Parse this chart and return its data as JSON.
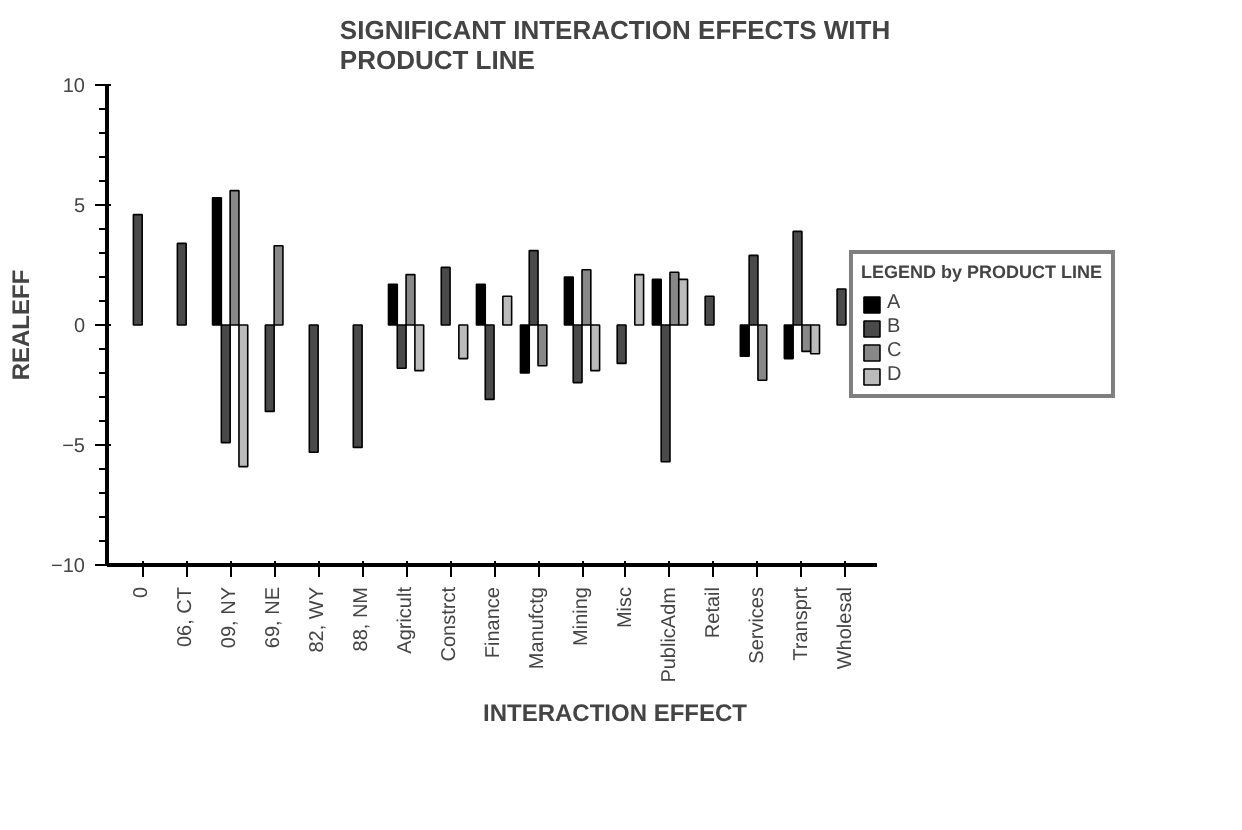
{
  "chart_data": {
    "type": "bar",
    "title": "SIGNIFICANT INTERACTION EFFECTS WITH PRODUCT LINE",
    "xlabel": "INTERACTION EFFECT",
    "ylabel": "REALEFF",
    "legend_title": "LEGEND by PRODUCT LINE",
    "categories": [
      "0",
      "06, CT",
      "09, NY",
      "69, NE",
      "82, WY",
      "88, NM",
      "Agricult",
      "Constrct",
      "Finance",
      "Manufctg",
      "Mining",
      "Misc",
      "PublicAdm",
      "Retail",
      "Services",
      "Transprt",
      "Wholesal"
    ],
    "series": [
      {
        "name": "A",
        "color": "#000000",
        "values": [
          null,
          null,
          5.3,
          null,
          null,
          null,
          1.7,
          null,
          1.7,
          -2.0,
          2.0,
          null,
          1.9,
          null,
          -1.3,
          -1.4,
          null
        ]
      },
      {
        "name": "B",
        "color": "#4a4a4a",
        "values": [
          4.6,
          3.4,
          -4.9,
          -3.6,
          -5.3,
          -5.1,
          -1.8,
          2.4,
          -3.1,
          3.1,
          -2.4,
          -1.6,
          -5.7,
          1.2,
          2.9,
          3.9,
          1.5
        ]
      },
      {
        "name": "C",
        "color": "#888888",
        "values": [
          null,
          null,
          5.6,
          3.3,
          null,
          null,
          2.1,
          null,
          null,
          -1.7,
          2.3,
          null,
          2.2,
          null,
          -2.3,
          -1.1,
          null
        ]
      },
      {
        "name": "D",
        "color": "#bbbbbb",
        "values": [
          null,
          null,
          -5.9,
          null,
          null,
          null,
          -1.9,
          -1.4,
          1.2,
          null,
          -1.9,
          2.1,
          1.9,
          null,
          null,
          -1.2,
          null
        ]
      }
    ],
    "ylim": [
      -10,
      10
    ],
    "yticks": [
      -10,
      {
        "value": -9,
        "label": null
      },
      {
        "value": -8,
        "label": null
      },
      {
        "value": -7,
        "label": null
      },
      {
        "value": -6,
        "label": null
      },
      -5,
      {
        "value": -4,
        "label": null
      },
      {
        "value": -3,
        "label": null
      },
      {
        "value": -2,
        "label": null
      },
      {
        "value": -1,
        "label": null
      },
      0,
      {
        "value": 1,
        "label": null
      },
      {
        "value": 2,
        "label": null
      },
      {
        "value": 3,
        "label": null
      },
      {
        "value": 4,
        "label": null
      },
      5,
      {
        "value": 6,
        "label": null
      },
      {
        "value": 7,
        "label": null
      },
      {
        "value": 8,
        "label": null
      },
      {
        "value": 9,
        "label": null
      },
      10
    ],
    "grid": false,
    "legend": "right"
  }
}
